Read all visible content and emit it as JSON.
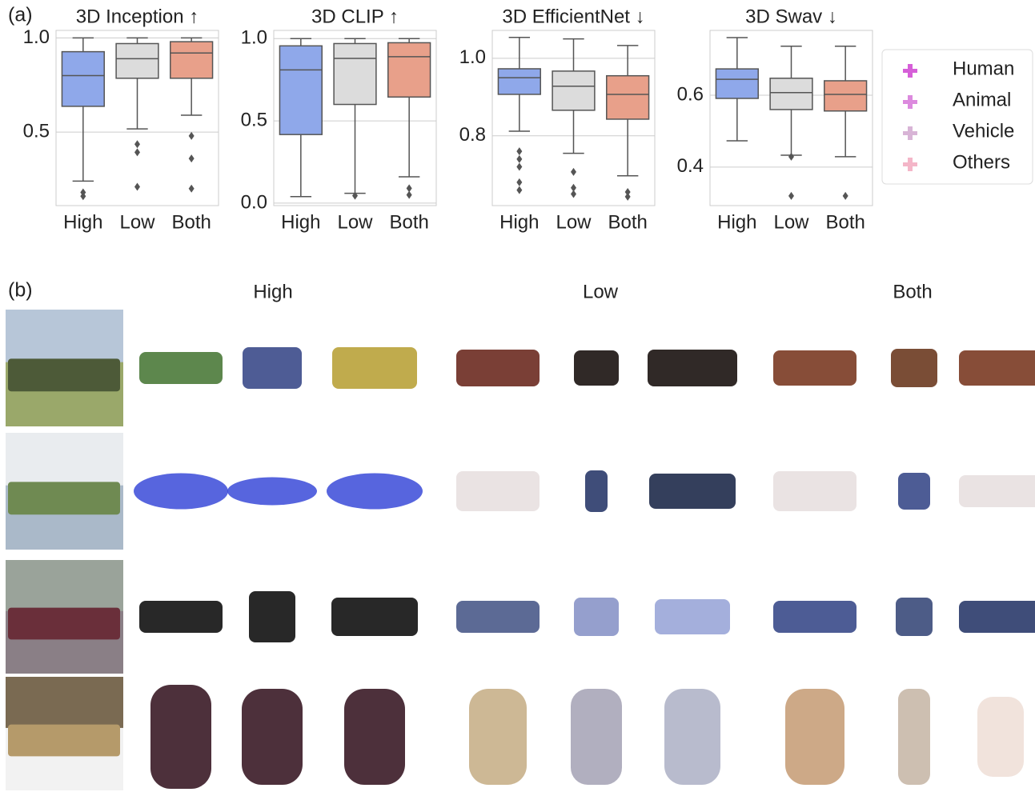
{
  "panel_labels": [
    "(a)",
    "(b)"
  ],
  "chart_data": [
    {
      "type": "boxplot",
      "title": "3D Inception ↑",
      "categories": [
        "High",
        "Low",
        "Both"
      ],
      "colors": [
        "#8fa8ea",
        "#dcdcdc",
        "#e8a08a"
      ],
      "ylim": [
        0.11,
        1.04
      ],
      "yticks": [
        0.5,
        {
          "value": 1,
          "label": "1.0"
        }
      ],
      "grid": true,
      "boxes": [
        {
          "whislo": 0.24,
          "q1": 0.637,
          "med": 0.8,
          "q3": 0.927,
          "whishi": 1.0,
          "fliers": [
            0.18,
            0.16
          ]
        },
        {
          "whislo": 0.517,
          "q1": 0.786,
          "med": 0.89,
          "q3": 0.97,
          "whishi": 1.0,
          "fliers": [
            0.436,
            0.393,
            0.21
          ]
        },
        {
          "whislo": 0.59,
          "q1": 0.786,
          "med": 0.92,
          "q3": 0.98,
          "whishi": 1.0,
          "fliers": [
            0.48,
            0.36,
            0.2
          ]
        }
      ]
    },
    {
      "type": "boxplot",
      "title": "3D CLIP ↑",
      "categories": [
        "High",
        "Low",
        "Both"
      ],
      "colors": [
        "#8fa8ea",
        "#dcdcdc",
        "#e8a08a"
      ],
      "ylim": [
        -0.015,
        1.05
      ],
      "yticks": [
        {
          "value": 0,
          "label": "0.0"
        },
        0.5,
        {
          "value": 1,
          "label": "1.0"
        }
      ],
      "grid": true,
      "boxes": [
        {
          "whislo": 0.04,
          "q1": 0.417,
          "med": 0.81,
          "q3": 0.956,
          "whishi": 1.0,
          "fliers": []
        },
        {
          "whislo": 0.06,
          "q1": 0.6,
          "med": 0.88,
          "q3": 0.97,
          "whishi": 1.0,
          "fliers": [
            0.045
          ]
        },
        {
          "whislo": 0.16,
          "q1": 0.645,
          "med": 0.89,
          "q3": 0.975,
          "whishi": 1.0,
          "fliers": [
            0.09,
            0.05
          ]
        }
      ]
    },
    {
      "type": "boxplot",
      "title": "3D EfficientNet ↓",
      "categories": [
        "High",
        "Low",
        "Both"
      ],
      "colors": [
        "#8fa8ea",
        "#dcdcdc",
        "#e8a08a"
      ],
      "ylim": [
        0.62,
        1.072
      ],
      "yticks": [
        0.8,
        {
          "value": 1,
          "label": "1.0"
        }
      ],
      "grid": true,
      "boxes": [
        {
          "whislo": 0.812,
          "q1": 0.907,
          "med": 0.95,
          "q3": 0.973,
          "whishi": 1.054,
          "fliers": [
            0.76,
            0.74,
            0.72,
            0.68,
            0.66
          ]
        },
        {
          "whislo": 0.755,
          "q1": 0.866,
          "med": 0.928,
          "q3": 0.967,
          "whishi": 1.05,
          "fliers": [
            0.707,
            0.666,
            0.65
          ]
        },
        {
          "whislo": 0.697,
          "q1": 0.843,
          "med": 0.907,
          "q3": 0.955,
          "whishi": 1.033,
          "fliers": [
            0.655,
            0.643
          ]
        }
      ]
    },
    {
      "type": "boxplot",
      "title": "3D Swav ↓",
      "categories": [
        "High",
        "Low",
        "Both"
      ],
      "colors": [
        "#8fa8ea",
        "#dcdcdc",
        "#e8a08a"
      ],
      "ylim": [
        0.293,
        0.78
      ],
      "yticks": [
        0.4,
        0.6
      ],
      "grid": true,
      "boxes": [
        {
          "whislo": 0.473,
          "q1": 0.591,
          "med": 0.644,
          "q3": 0.673,
          "whishi": 0.76,
          "fliers": []
        },
        {
          "whislo": 0.433,
          "q1": 0.56,
          "med": 0.607,
          "q3": 0.647,
          "whishi": 0.736,
          "fliers": [
            0.429,
            0.32
          ]
        },
        {
          "whislo": 0.429,
          "q1": 0.556,
          "med": 0.602,
          "q3": 0.64,
          "whishi": 0.736,
          "fliers": [
            0.32
          ]
        }
      ]
    }
  ],
  "legend": {
    "entries": [
      {
        "name": "Human",
        "color": "#d65fd8"
      },
      {
        "name": "Animal",
        "color": "#dc8ade"
      },
      {
        "name": "Vehicle",
        "color": "#d8b4d6"
      },
      {
        "name": "Others",
        "color": "#f4b6c8"
      }
    ]
  },
  "image_grid": {
    "columns": [
      "High",
      "Low",
      "Both"
    ]
  }
}
